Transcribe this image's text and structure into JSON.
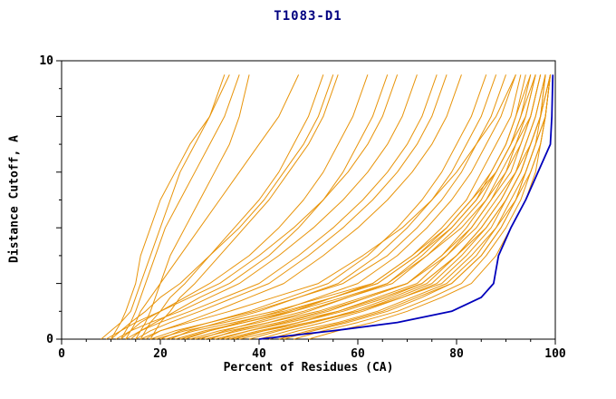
{
  "chart_data": {
    "type": "line",
    "title": "T1083-D1",
    "xlabel": "Percent of Residues (CA)",
    "ylabel": "Distance Cutoff, A",
    "xlim": [
      0,
      100
    ],
    "ylim": [
      0,
      10
    ],
    "xticks_major": [
      0,
      20,
      40,
      60,
      80,
      100
    ],
    "xtick_minor_step": 5,
    "yticks_major": [
      0,
      2,
      4,
      6,
      8,
      10
    ],
    "ytick_minor_step": 1,
    "ytick_labels_shown": [
      0,
      10
    ],
    "grid": false,
    "legend": "none",
    "colors": {
      "orange_series": "#e8940a",
      "blue_series": "#0000bb",
      "axis": "#000000",
      "background": "#ffffff",
      "title_text": "#000080"
    },
    "y_levels": [
      0,
      0.3,
      0.6,
      1.0,
      1.5,
      2.0,
      3.0,
      4.0,
      5.0,
      6.0,
      7.0,
      8.0,
      9.5
    ],
    "orange_series_x_at_levels": [
      [
        10,
        11,
        12,
        13,
        14,
        15,
        16,
        18,
        20,
        23,
        26,
        30,
        34
      ],
      [
        12,
        13,
        14,
        15,
        16,
        17,
        19,
        21,
        24,
        27,
        30,
        33,
        36
      ],
      [
        8,
        10,
        12,
        14,
        15,
        16,
        18,
        20,
        22,
        24,
        27,
        30,
        33
      ],
      [
        15,
        16,
        17,
        18,
        19,
        20,
        22,
        25,
        28,
        31,
        34,
        36,
        38
      ],
      [
        13,
        14,
        15,
        16,
        18,
        20,
        24,
        28,
        32,
        36,
        40,
        44,
        48
      ],
      [
        16,
        17,
        18,
        20,
        22,
        25,
        30,
        35,
        40,
        44,
        47,
        50,
        53
      ],
      [
        18,
        19,
        20,
        22,
        24,
        27,
        32,
        37,
        42,
        46,
        50,
        53,
        56
      ],
      [
        10,
        12,
        14,
        17,
        20,
        24,
        30,
        36,
        41,
        45,
        49,
        52,
        55
      ],
      [
        12,
        14,
        16,
        20,
        25,
        30,
        38,
        44,
        49,
        53,
        56,
        59,
        62
      ],
      [
        14,
        16,
        19,
        23,
        28,
        34,
        42,
        48,
        53,
        57,
        60,
        63,
        66
      ],
      [
        9,
        12,
        15,
        20,
        26,
        32,
        40,
        47,
        53,
        58,
        62,
        65,
        68
      ],
      [
        11,
        14,
        18,
        24,
        30,
        36,
        44,
        51,
        57,
        62,
        66,
        69,
        72
      ],
      [
        13,
        16,
        20,
        26,
        33,
        40,
        48,
        55,
        61,
        66,
        70,
        73,
        76
      ],
      [
        15,
        18,
        22,
        28,
        35,
        42,
        50,
        57,
        63,
        68,
        72,
        75,
        78
      ],
      [
        17,
        20,
        25,
        31,
        38,
        45,
        53,
        60,
        66,
        71,
        75,
        78,
        81
      ],
      [
        20,
        24,
        30,
        38,
        46,
        54,
        62,
        68,
        73,
        77,
        80,
        83,
        86
      ],
      [
        22,
        26,
        32,
        40,
        48,
        56,
        64,
        70,
        75,
        79,
        82,
        85,
        88
      ],
      [
        18,
        23,
        30,
        39,
        48,
        57,
        66,
        72,
        77,
        81,
        84,
        87,
        90
      ],
      [
        25,
        30,
        36,
        44,
        52,
        60,
        68,
        74,
        79,
        83,
        86,
        89,
        92
      ],
      [
        28,
        33,
        39,
        47,
        55,
        63,
        71,
        77,
        82,
        85,
        88,
        91,
        93
      ],
      [
        30,
        35,
        42,
        50,
        58,
        66,
        73,
        79,
        84,
        87,
        90,
        92,
        94
      ],
      [
        24,
        30,
        37,
        46,
        55,
        64,
        72,
        78,
        83,
        87,
        90,
        92,
        95
      ],
      [
        26,
        32,
        40,
        49,
        58,
        67,
        74,
        80,
        85,
        88,
        91,
        93,
        96
      ],
      [
        32,
        38,
        45,
        54,
        62,
        70,
        77,
        82,
        86,
        89,
        92,
        94,
        96
      ],
      [
        35,
        41,
        48,
        56,
        64,
        72,
        78,
        83,
        87,
        90,
        93,
        95,
        97
      ],
      [
        38,
        44,
        51,
        59,
        67,
        74,
        80,
        85,
        89,
        92,
        94,
        96,
        98
      ],
      [
        40,
        46,
        53,
        61,
        69,
        76,
        82,
        87,
        90,
        93,
        95,
        97,
        98
      ],
      [
        42,
        48,
        56,
        64,
        71,
        78,
        84,
        88,
        91,
        94,
        96,
        97,
        99
      ],
      [
        36,
        43,
        51,
        60,
        68,
        75,
        81,
        86,
        90,
        93,
        95,
        97,
        99
      ],
      [
        33,
        40,
        48,
        57,
        66,
        73,
        80,
        85,
        89,
        92,
        95,
        97,
        98
      ],
      [
        45,
        51,
        58,
        66,
        73,
        79,
        85,
        89,
        92,
        94,
        96,
        98,
        99
      ],
      [
        47,
        53,
        60,
        68,
        75,
        81,
        86,
        90,
        93,
        95,
        97,
        98,
        99
      ],
      [
        50,
        56,
        63,
        70,
        77,
        83,
        88,
        91,
        94,
        96,
        97,
        98,
        99
      ],
      [
        29,
        36,
        44,
        53,
        62,
        70,
        77,
        83,
        87,
        91,
        93,
        95,
        97
      ],
      [
        21,
        27,
        35,
        45,
        55,
        64,
        72,
        79,
        84,
        88,
        91,
        94,
        96
      ],
      [
        19,
        25,
        33,
        43,
        53,
        63,
        71,
        78,
        83,
        88,
        91,
        93,
        95
      ],
      [
        23,
        29,
        37,
        47,
        57,
        66,
        74,
        81,
        86,
        90,
        92,
        95,
        97
      ],
      [
        27,
        34,
        42,
        52,
        61,
        70,
        78,
        84,
        88,
        92,
        94,
        96,
        98
      ],
      [
        31,
        38,
        46,
        56,
        65,
        73,
        80,
        86,
        90,
        93,
        95,
        97,
        99
      ],
      [
        34,
        41,
        50,
        60,
        69,
        77,
        83,
        88,
        92,
        94,
        96,
        98,
        99
      ],
      [
        44,
        50,
        57,
        65,
        72,
        79,
        85,
        89,
        92,
        95,
        97,
        98,
        99
      ],
      [
        16,
        20,
        26,
        34,
        43,
        52,
        61,
        69,
        75,
        80,
        84,
        88,
        92
      ]
    ],
    "blue_series_x_at_levels": [
      40,
      55,
      68,
      79,
      85,
      87.5,
      88.5,
      91,
      94,
      96.5,
      99,
      99.3,
      99.5
    ]
  }
}
